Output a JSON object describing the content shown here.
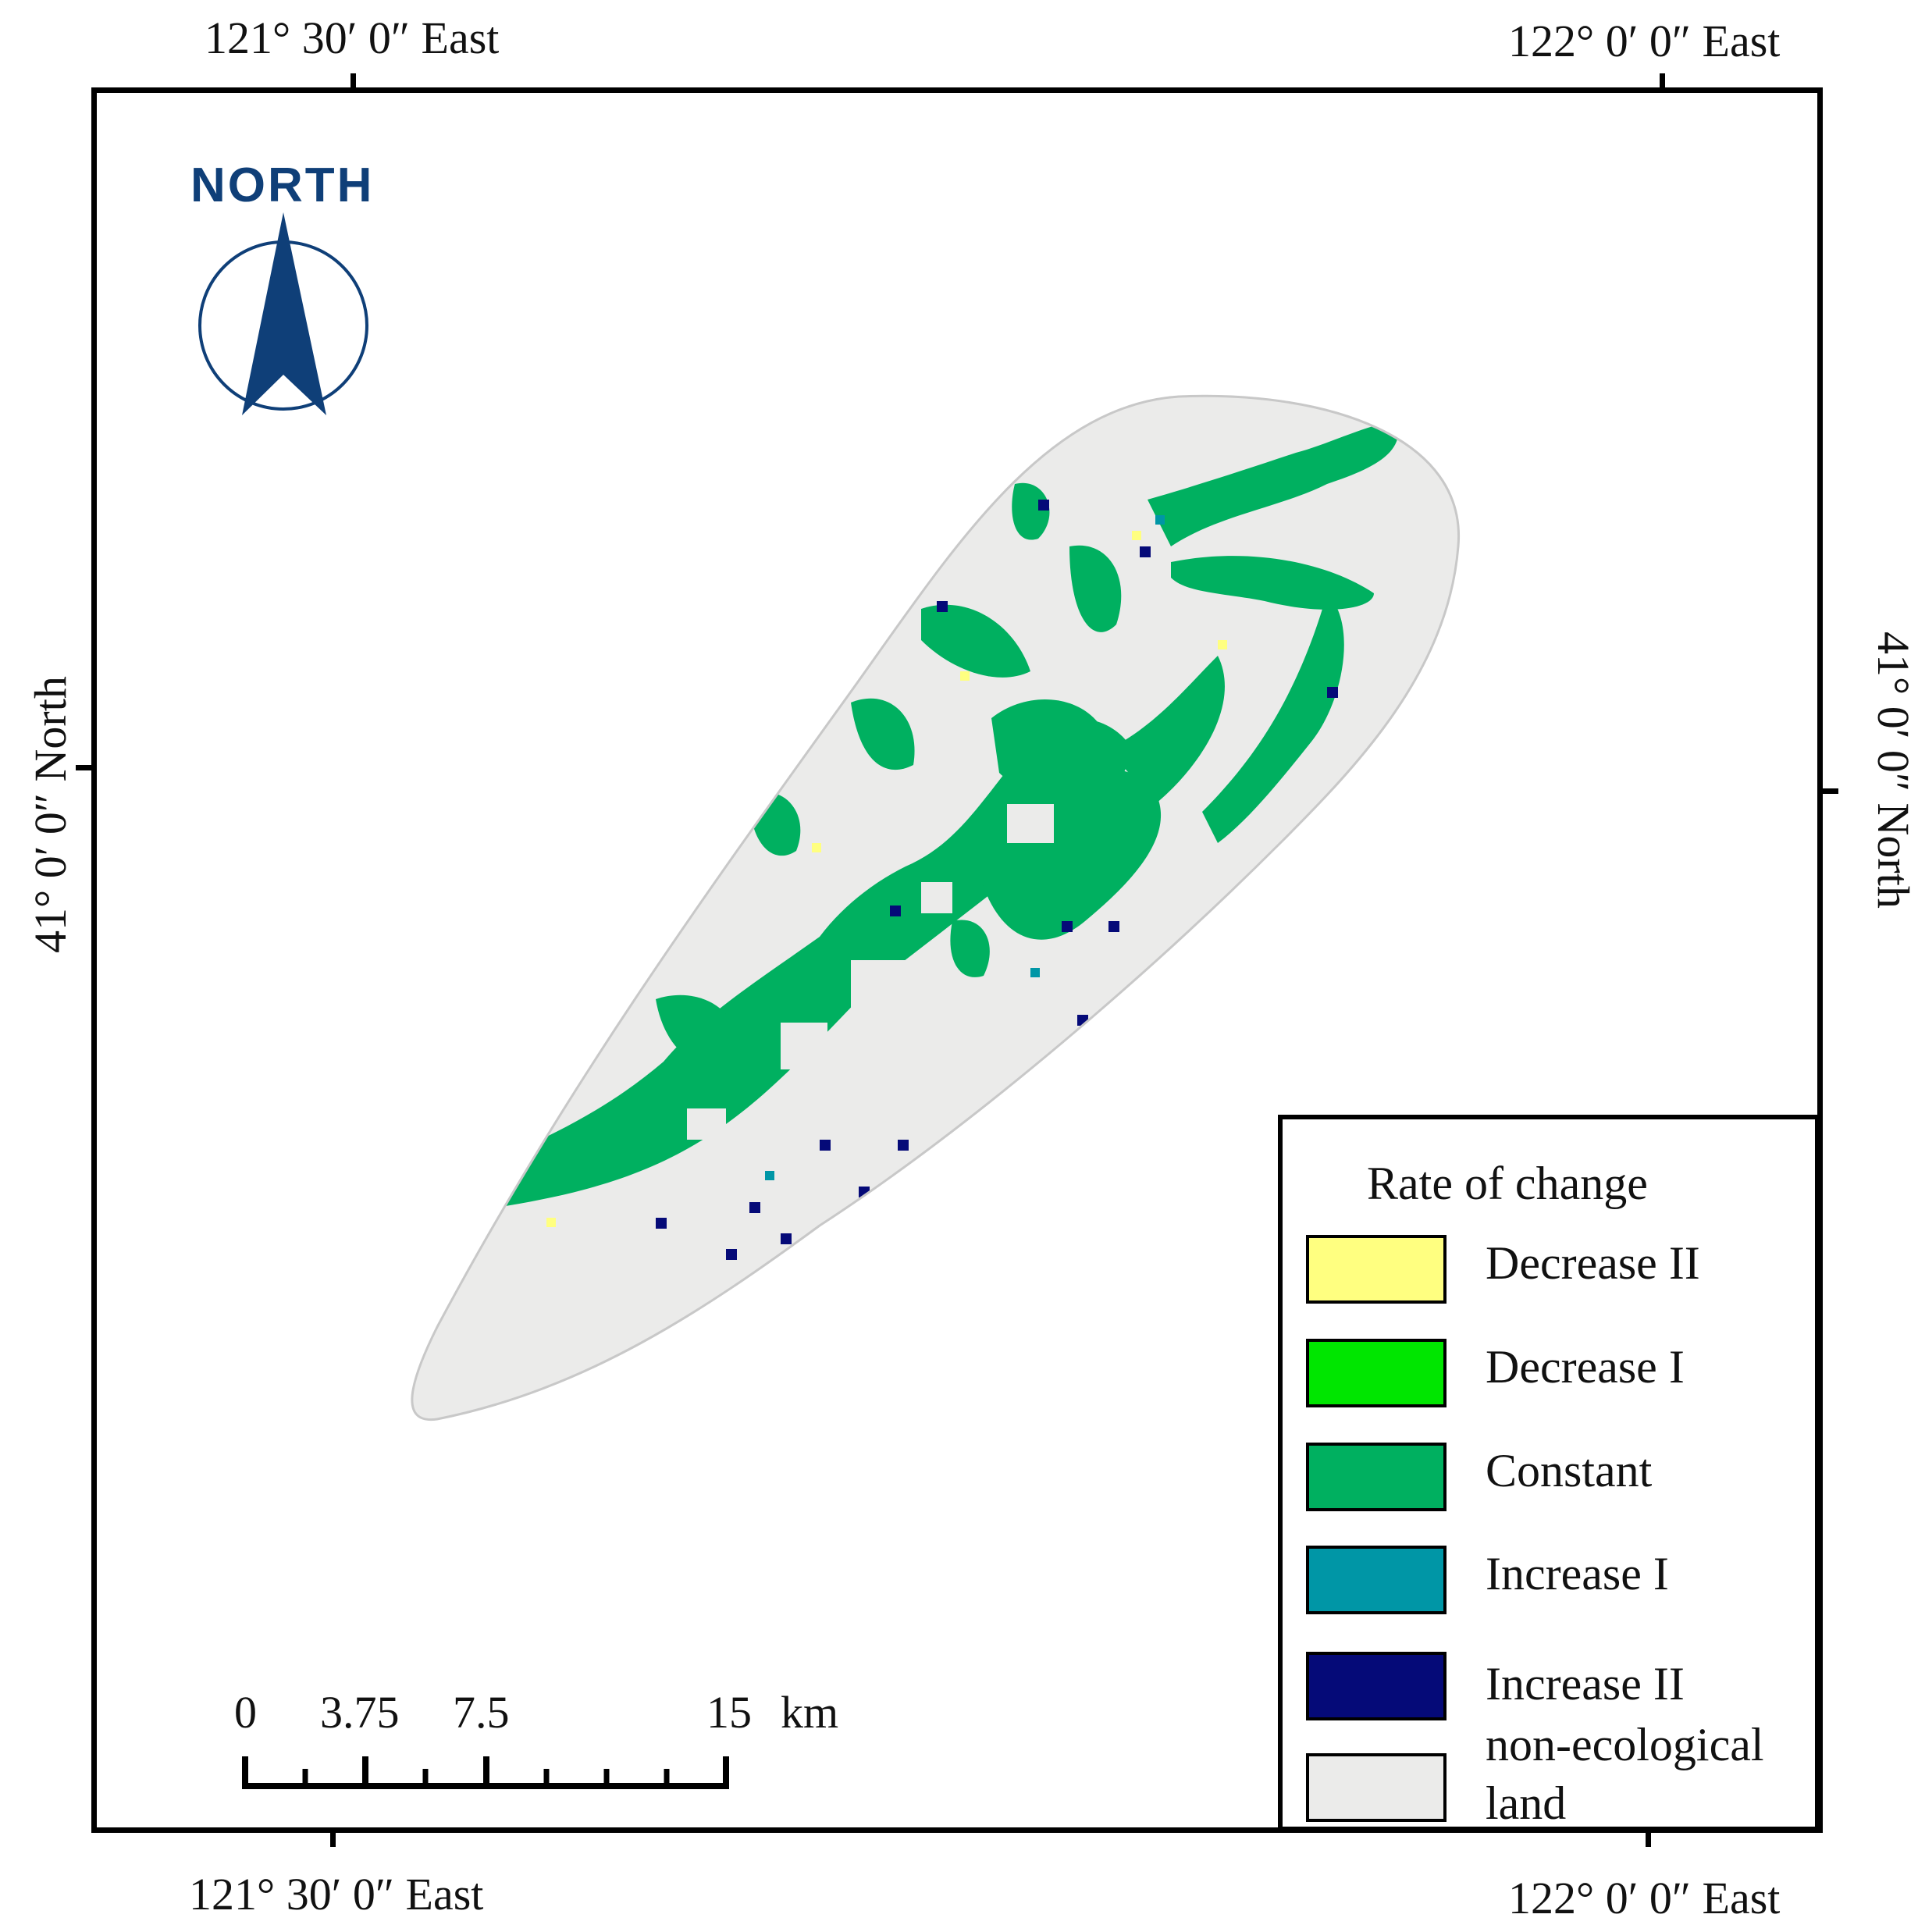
{
  "coords": {
    "top_left": "121° 30′ 0″ East",
    "top_right": "122° 0′ 0″ East",
    "bottom_left": "121° 30′ 0″ East",
    "bottom_right": "122° 0′ 0″ East",
    "left": "41° 0′ 0″ North",
    "right": "41° 0′ 0″ North"
  },
  "north_arrow": {
    "label": "NORTH",
    "color": "#0f3f78"
  },
  "legend": {
    "title": "Rate of change",
    "items": [
      {
        "label": "Decrease II",
        "color": "#ffff80"
      },
      {
        "label": "Decrease I",
        "color": "#00e600"
      },
      {
        "label": "Constant",
        "color": "#00b060"
      },
      {
        "label": "Increase I",
        "color": "#0096a6"
      },
      {
        "label": "Increase II",
        "color": "#050a78"
      },
      {
        "label": "non-ecological\nland",
        "color": "#ebebea"
      }
    ]
  },
  "scale_bar": {
    "labels": [
      "0",
      "3.75",
      "7.5",
      "15"
    ],
    "unit": "km"
  }
}
